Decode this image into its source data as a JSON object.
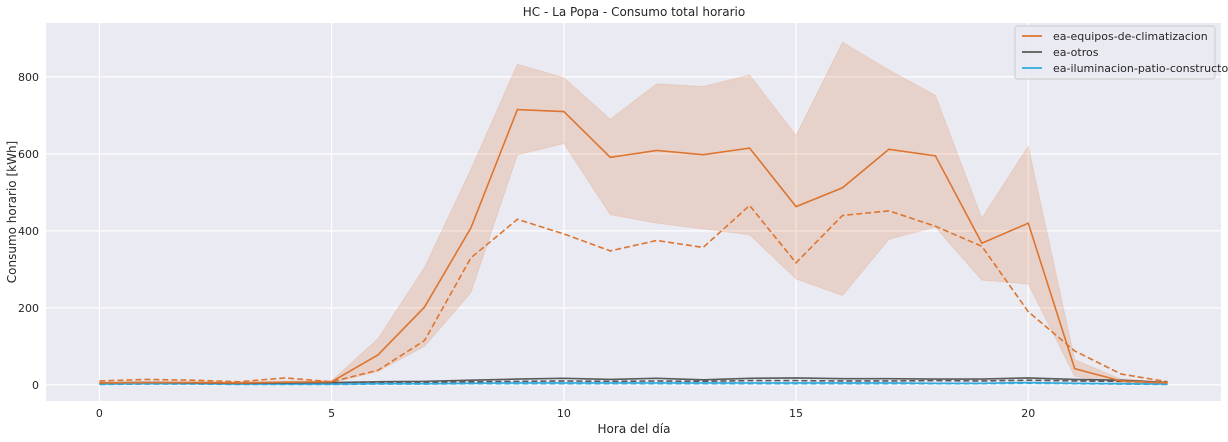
{
  "chart_data": {
    "type": "line",
    "title": "HC - La Popa - Consumo total horario",
    "xlabel": "Hora del día",
    "ylabel": "Consumo horario [kWh]",
    "xlim": [
      -1.15,
      24.15
    ],
    "ylim": [
      -42,
      940
    ],
    "xticks": [
      0,
      5,
      10,
      15,
      20
    ],
    "yticks": [
      0,
      200,
      400,
      600,
      800
    ],
    "grid": true,
    "legend_position": "top-right",
    "x": [
      0,
      1,
      2,
      3,
      4,
      5,
      6,
      7,
      8,
      9,
      10,
      11,
      12,
      13,
      14,
      15,
      16,
      17,
      18,
      19,
      20,
      21,
      22,
      23
    ],
    "series": [
      {
        "name": "ea-equipos-de-climatizacion",
        "color": "#dd7530",
        "values": [
          5,
          6,
          6,
          5,
          7,
          8,
          78,
          202,
          408,
          715,
          710,
          591,
          609,
          598,
          615,
          463,
          512,
          612,
          595,
          368,
          420,
          42,
          10,
          5
        ],
        "lower": [
          2,
          3,
          3,
          2,
          4,
          5,
          35,
          100,
          240,
          597,
          627,
          442,
          420,
          405,
          390,
          275,
          232,
          378,
          410,
          272,
          262,
          22,
          5,
          2
        ],
        "upper": [
          8,
          9,
          9,
          8,
          10,
          11,
          120,
          305,
          560,
          833,
          798,
          690,
          782,
          775,
          805,
          648,
          890,
          818,
          752,
          433,
          620,
          65,
          15,
          8
        ],
        "dashed": [
          10,
          14,
          12,
          8,
          18,
          8,
          38,
          115,
          330,
          430,
          392,
          348,
          375,
          357,
          466,
          317,
          440,
          452,
          412,
          360,
          190,
          88,
          28,
          8
        ]
      },
      {
        "name": "ea-otros",
        "color": "#5a5a5a",
        "values": [
          5,
          6,
          5,
          4,
          5,
          6,
          8,
          9,
          12,
          15,
          17,
          14,
          17,
          13,
          17,
          18,
          16,
          16,
          15,
          15,
          18,
          14,
          12,
          6
        ],
        "dashed": [
          3,
          4,
          4,
          3,
          4,
          4,
          5,
          6,
          8,
          9,
          10,
          9,
          10,
          9,
          11,
          11,
          10,
          10,
          11,
          10,
          12,
          10,
          9,
          5
        ]
      },
      {
        "name": "ea-iluminacion-patio-constructor",
        "color": "#33aadd",
        "values": [
          2,
          3,
          3,
          2,
          2,
          2,
          3,
          3,
          4,
          5,
          5,
          5,
          5,
          5,
          5,
          5,
          5,
          5,
          4,
          4,
          6,
          4,
          3,
          2
        ],
        "dashed": [
          1,
          2,
          2,
          1,
          1,
          1,
          2,
          2,
          3,
          3,
          3,
          3,
          3,
          3,
          3,
          3,
          3,
          3,
          3,
          3,
          4,
          3,
          2,
          1
        ]
      }
    ]
  }
}
